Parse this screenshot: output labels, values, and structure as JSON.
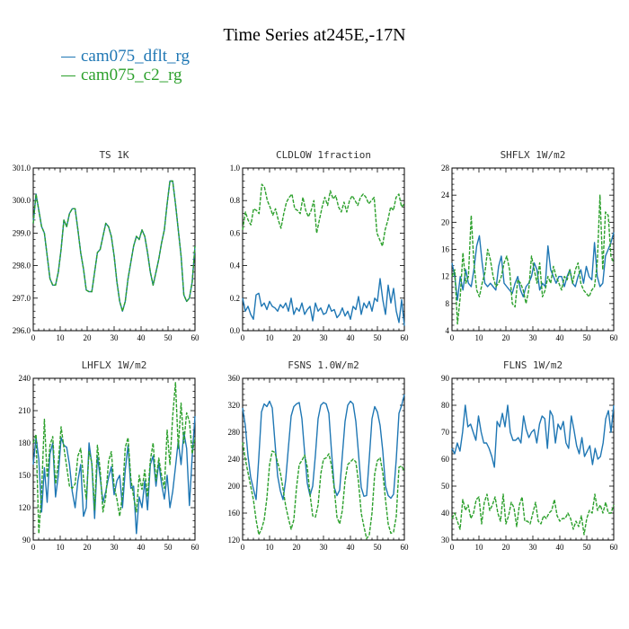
{
  "title": "Time Series at245E,-17N",
  "legend": [
    {
      "label": "cam075_dflt_rg",
      "color": "#1f77b4"
    },
    {
      "label": "cam075_c2_rg",
      "color": "#2ca02c"
    }
  ],
  "chart_data": [
    {
      "type": "line",
      "title": "TS   1K",
      "xlim": [
        0,
        60
      ],
      "ylim": [
        296.0,
        301.0
      ],
      "xticks": [
        "0",
        "10",
        "20",
        "30",
        "40",
        "50",
        "60"
      ],
      "yticks": [
        "296.0",
        "297.0",
        "298.0",
        "299.0",
        "300.0",
        "301.0"
      ],
      "yticks_values": [
        296,
        297,
        298,
        299,
        300,
        301
      ],
      "series": [
        {
          "name": "cam075_dflt_rg",
          "color": "#1f77b4",
          "values": [
            299.3,
            300.2,
            299.7,
            299.2,
            299.0,
            298.3,
            297.6,
            297.4,
            297.4,
            297.8,
            298.5,
            299.4,
            299.2,
            299.6,
            299.75,
            299.75,
            299.1,
            298.4,
            297.9,
            297.25,
            297.2,
            297.2,
            297.8,
            298.4,
            298.5,
            298.9,
            299.3,
            299.2,
            298.9,
            298.3,
            297.5,
            296.9,
            296.6,
            296.9,
            297.6,
            298.1,
            298.6,
            298.9,
            298.8,
            299.1,
            298.9,
            298.4,
            297.8,
            297.4,
            297.8,
            298.2,
            298.7,
            299.1,
            299.9,
            300.6,
            300.6,
            299.9,
            299.1,
            298.3,
            297.1,
            296.9,
            297.0,
            297.5,
            298.6
          ]
        },
        {
          "name": "cam075_c2_rg",
          "color": "#2ca02c",
          "values": [
            299.3,
            300.2,
            299.7,
            299.2,
            299.0,
            298.3,
            297.6,
            297.4,
            297.4,
            297.8,
            298.5,
            299.4,
            299.2,
            299.6,
            299.75,
            299.75,
            299.1,
            298.4,
            297.9,
            297.25,
            297.2,
            297.2,
            297.8,
            298.4,
            298.5,
            298.9,
            299.3,
            299.2,
            298.9,
            298.3,
            297.5,
            296.9,
            296.6,
            296.9,
            297.6,
            298.1,
            298.6,
            298.9,
            298.8,
            299.1,
            298.9,
            298.4,
            297.8,
            297.4,
            297.8,
            298.2,
            298.7,
            299.1,
            299.9,
            300.6,
            300.6,
            299.9,
            299.1,
            298.3,
            297.1,
            296.9,
            297.0,
            297.5,
            298.6
          ]
        }
      ]
    },
    {
      "type": "line",
      "title": "CLDLOW   1fraction",
      "xlim": [
        0,
        60
      ],
      "ylim": [
        0.0,
        1.0
      ],
      "xticks": [
        "0",
        "10",
        "20",
        "30",
        "40",
        "50",
        "60"
      ],
      "yticks": [
        "0.0",
        "0.2",
        "0.4",
        "0.6",
        "0.8",
        "1.0"
      ],
      "yticks_values": [
        0,
        0.2,
        0.4,
        0.6,
        0.8,
        1.0
      ],
      "series": [
        {
          "name": "cam075_dflt_rg",
          "color": "#1f77b4",
          "values": [
            0.2,
            0.12,
            0.15,
            0.1,
            0.07,
            0.22,
            0.23,
            0.15,
            0.17,
            0.13,
            0.18,
            0.15,
            0.14,
            0.12,
            0.16,
            0.14,
            0.17,
            0.12,
            0.2,
            0.1,
            0.14,
            0.12,
            0.17,
            0.1,
            0.13,
            0.15,
            0.06,
            0.17,
            0.12,
            0.14,
            0.1,
            0.11,
            0.16,
            0.12,
            0.13,
            0.08,
            0.1,
            0.14,
            0.09,
            0.12,
            0.07,
            0.15,
            0.13,
            0.21,
            0.1,
            0.17,
            0.14,
            0.18,
            0.12,
            0.2,
            0.18,
            0.32,
            0.19,
            0.1,
            0.28,
            0.17,
            0.26,
            0.12,
            0.05,
            0.19,
            0.03
          ]
        },
        {
          "name": "cam075_c2_rg",
          "color": "#2ca02c",
          "values": [
            0.62,
            0.73,
            0.68,
            0.65,
            0.75,
            0.74,
            0.72,
            0.9,
            0.88,
            0.8,
            0.76,
            0.71,
            0.75,
            0.68,
            0.63,
            0.72,
            0.79,
            0.82,
            0.84,
            0.75,
            0.74,
            0.72,
            0.82,
            0.74,
            0.7,
            0.74,
            0.8,
            0.6,
            0.68,
            0.76,
            0.82,
            0.77,
            0.86,
            0.81,
            0.83,
            0.76,
            0.73,
            0.79,
            0.73,
            0.8,
            0.83,
            0.8,
            0.77,
            0.82,
            0.84,
            0.82,
            0.78,
            0.8,
            0.82,
            0.6,
            0.56,
            0.52,
            0.62,
            0.68,
            0.76,
            0.74,
            0.82,
            0.84,
            0.76,
            0.78
          ]
        }
      ]
    },
    {
      "type": "line",
      "title": "SHFLX   1W/m2",
      "xlim": [
        0,
        60
      ],
      "ylim": [
        4,
        28
      ],
      "xticks": [
        "0",
        "10",
        "20",
        "30",
        "40",
        "50",
        "60"
      ],
      "yticks": [
        "4",
        "8",
        "12",
        "16",
        "20",
        "24",
        "28"
      ],
      "yticks_values": [
        4,
        8,
        12,
        16,
        20,
        24,
        28
      ],
      "series": [
        {
          "name": "cam075_dflt_rg",
          "color": "#1f77b4",
          "values": [
            14,
            12,
            8.5,
            12,
            10,
            13,
            11,
            10.5,
            13,
            16.5,
            18,
            14,
            11,
            10.5,
            11,
            10.5,
            10,
            13.5,
            15,
            11,
            10.5,
            10,
            9.5,
            11,
            12,
            10,
            9,
            10.5,
            11,
            12,
            14,
            13,
            10,
            11,
            10.5,
            16.5,
            13,
            12,
            11,
            12,
            12,
            10.5,
            12,
            13,
            11,
            10.5,
            12,
            13,
            11,
            13.5,
            12,
            11.5,
            17,
            12,
            10.5,
            11,
            15,
            16,
            17,
            18.5
          ]
        },
        {
          "name": "cam075_c2_rg",
          "color": "#2ca02c",
          "values": [
            12,
            13,
            5,
            9,
            15.5,
            11,
            12,
            21,
            14,
            10,
            9,
            11,
            12.5,
            16,
            14.5,
            12,
            10.5,
            11,
            12,
            14,
            15,
            13,
            8,
            7.5,
            11.5,
            11,
            10,
            8,
            10,
            15,
            13,
            11,
            14,
            9,
            10,
            12,
            11,
            13.5,
            12,
            11,
            10,
            12,
            11.5,
            13,
            11,
            13,
            14,
            11,
            10,
            9.5,
            9,
            10,
            10.5,
            14,
            24,
            13,
            21.5,
            21,
            15,
            14
          ]
        }
      ]
    },
    {
      "type": "line",
      "title": "LHFLX   1W/m2",
      "xlim": [
        0,
        60
      ],
      "ylim": [
        90,
        240
      ],
      "xticks": [
        "0",
        "10",
        "20",
        "30",
        "40",
        "50",
        "60"
      ],
      "yticks": [
        "90",
        "120",
        "150",
        "180",
        "210",
        "240"
      ],
      "yticks_values": [
        90,
        120,
        150,
        180,
        210,
        240
      ],
      "series": [
        {
          "name": "cam075_dflt_rg",
          "color": "#1f77b4",
          "values": [
            160,
            185,
            165,
            116,
            157,
            125,
            170,
            180,
            130,
            150,
            185,
            178,
            176,
            160,
            135,
            120,
            145,
            160,
            112,
            120,
            180,
            160,
            110,
            168,
            148,
            125,
            135,
            148,
            158,
            132,
            145,
            150,
            120,
            155,
            178,
            138,
            140,
            96,
            130,
            120,
            145,
            118,
            160,
            168,
            140,
            162,
            142,
            128,
            150,
            120,
            135,
            158,
            182,
            160,
            190,
            175,
            122,
            168,
            205
          ]
        },
        {
          "name": "cam075_c2_rg",
          "color": "#2ca02c",
          "values": [
            180,
            188,
            96,
            135,
            202,
            148,
            178,
            186,
            142,
            162,
            195,
            176,
            158,
            140,
            138,
            142,
            168,
            175,
            148,
            128,
            172,
            162,
            118,
            178,
            155,
            116,
            130,
            163,
            172,
            140,
            128,
            112,
            132,
            176,
            185,
            147,
            130,
            116,
            150,
            137,
            155,
            130,
            164,
            180,
            145,
            166,
            150,
            138,
            192,
            160,
            205,
            236,
            175,
            217,
            180,
            208,
            200,
            170,
            185
          ]
        }
      ]
    },
    {
      "type": "line",
      "title": "FSNS   1.0W/m2",
      "xlim": [
        0,
        60
      ],
      "ylim": [
        120,
        360
      ],
      "xticks": [
        "0",
        "10",
        "20",
        "30",
        "40",
        "50",
        "60"
      ],
      "yticks": [
        "120",
        "160",
        "200",
        "240",
        "280",
        "320",
        "360"
      ],
      "yticks_values": [
        120,
        160,
        200,
        240,
        280,
        320,
        360
      ],
      "series": [
        {
          "name": "cam075_dflt_rg",
          "color": "#1f77b4",
          "values": [
            316,
            290,
            245,
            213,
            196,
            180,
            242,
            310,
            322,
            318,
            326,
            316,
            265,
            215,
            193,
            180,
            210,
            258,
            304,
            318,
            322,
            324,
            300,
            250,
            204,
            186,
            200,
            246,
            300,
            320,
            324,
            322,
            308,
            250,
            198,
            186,
            194,
            246,
            296,
            320,
            326,
            322,
            296,
            248,
            198,
            185,
            186,
            242,
            300,
            318,
            310,
            290,
            252,
            200,
            186,
            182,
            188,
            240,
            308,
            320,
            336
          ]
        },
        {
          "name": "cam075_c2_rg",
          "color": "#2ca02c",
          "values": [
            265,
            240,
            220,
            200,
            180,
            150,
            128,
            136,
            150,
            182,
            232,
            252,
            250,
            235,
            220,
            196,
            170,
            152,
            136,
            150,
            198,
            232,
            238,
            246,
            228,
            188,
            156,
            154,
            172,
            218,
            240,
            242,
            248,
            230,
            196,
            154,
            144,
            164,
            208,
            232,
            236,
            240,
            236,
            206,
            160,
            140,
            122,
            128,
            160,
            218,
            238,
            242,
            220,
            180,
            144,
            130,
            132,
            155,
            228,
            230,
            222
          ]
        }
      ]
    },
    {
      "type": "line",
      "title": "FLNS   1W/m2",
      "xlim": [
        0,
        60
      ],
      "ylim": [
        30,
        90
      ],
      "xticks": [
        "0",
        "10",
        "20",
        "30",
        "40",
        "50",
        "60"
      ],
      "yticks": [
        "30",
        "40",
        "50",
        "60",
        "70",
        "80",
        "90"
      ],
      "yticks_values": [
        30,
        40,
        50,
        60,
        70,
        80,
        90
      ],
      "series": [
        {
          "name": "cam075_dflt_rg",
          "color": "#1f77b4",
          "values": [
            64,
            62,
            66,
            63,
            70,
            80,
            72,
            73,
            70,
            67,
            76,
            70,
            66,
            66,
            64,
            61,
            57,
            74,
            72,
            77,
            72,
            80,
            70,
            67,
            67,
            68,
            66,
            76,
            71,
            68,
            70,
            71,
            66,
            73,
            76,
            75,
            64,
            78,
            76,
            66,
            73,
            71,
            74,
            66,
            64,
            76,
            71,
            65,
            62,
            68,
            61,
            63,
            65,
            58,
            64,
            60,
            61,
            66,
            75,
            78,
            70,
            80
          ]
        },
        {
          "name": "cam075_c2_rg",
          "color": "#2ca02c",
          "values": [
            38,
            40,
            37,
            34,
            45,
            41,
            43,
            38,
            40,
            45,
            46,
            36,
            44,
            47,
            41,
            43,
            46,
            40,
            37,
            47,
            36,
            39,
            44,
            42,
            35,
            43,
            46,
            37,
            37,
            36,
            40,
            44,
            37,
            36,
            39,
            38,
            40,
            41,
            45,
            39,
            37,
            38,
            38,
            40,
            38,
            34,
            37,
            35,
            39,
            32,
            38,
            41,
            40,
            47,
            41,
            43,
            40,
            44,
            40,
            40,
            43
          ]
        }
      ]
    }
  ]
}
